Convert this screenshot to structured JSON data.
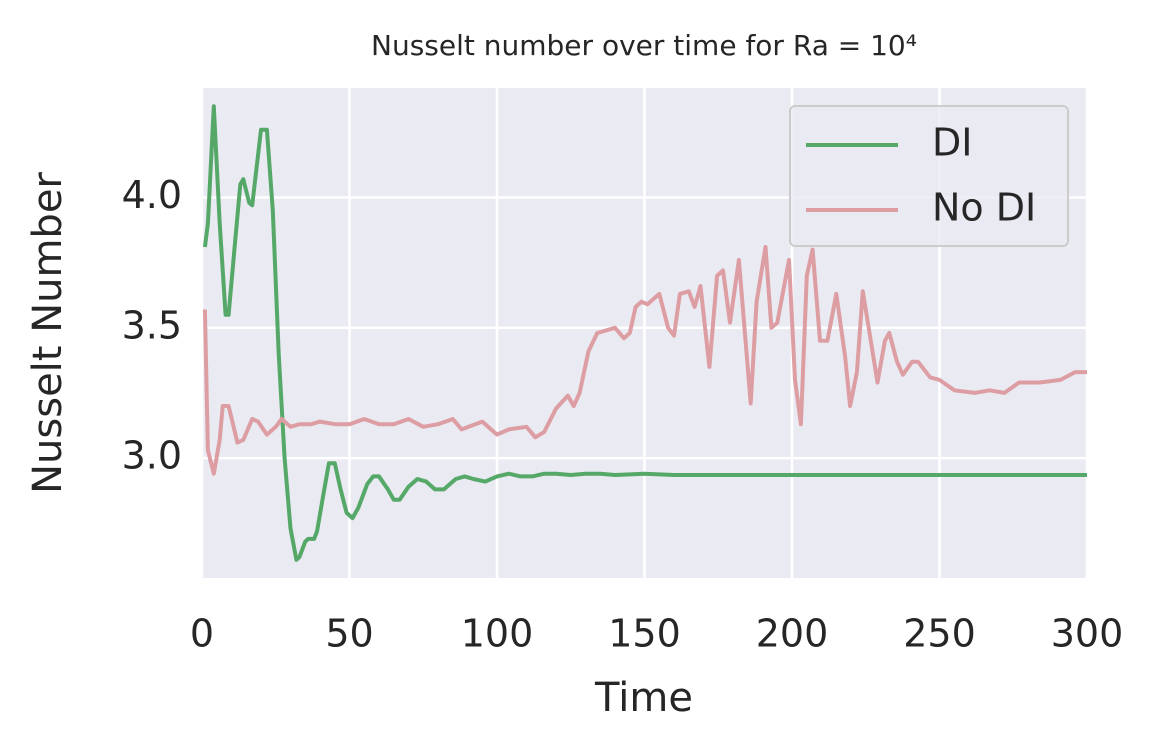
{
  "chart_data": {
    "type": "line",
    "title": "Nusselt number over time for Ra = 10⁴",
    "x_label": "Time",
    "y_label": "Nusselt Number",
    "xlim": [
      0,
      300
    ],
    "xticks": [
      0,
      50,
      100,
      150,
      200,
      250,
      300
    ],
    "ylim": [
      2.54,
      4.42
    ],
    "yticks": [
      {
        "value": 3,
        "label": "3.0"
      },
      3.5,
      {
        "value": 4,
        "label": "4.0"
      }
    ],
    "grid": true,
    "legend": "upper right",
    "series": [
      {
        "name": "DI",
        "color": "#55a868",
        "x": [
          1,
          2,
          4,
          6,
          8,
          9,
          11,
          13,
          14,
          16,
          17,
          20,
          22,
          24,
          26,
          28,
          30,
          32,
          33,
          35,
          36,
          38,
          39,
          41,
          43,
          45,
          47,
          49,
          51,
          53,
          56,
          58,
          60,
          63,
          65,
          67,
          70,
          73,
          76,
          79,
          82,
          86,
          89,
          92,
          96,
          100,
          104,
          108,
          112,
          116,
          120,
          125,
          130,
          135,
          140,
          150,
          160,
          170,
          200,
          250,
          300
        ],
        "values": [
          3.81,
          3.9,
          4.35,
          3.9,
          3.55,
          3.55,
          3.8,
          4.05,
          4.07,
          3.98,
          3.97,
          4.26,
          4.26,
          3.95,
          3.4,
          3.0,
          2.73,
          2.61,
          2.62,
          2.68,
          2.69,
          2.69,
          2.72,
          2.85,
          2.98,
          2.98,
          2.88,
          2.79,
          2.77,
          2.81,
          2.9,
          2.93,
          2.93,
          2.88,
          2.84,
          2.84,
          2.89,
          2.92,
          2.91,
          2.88,
          2.88,
          2.92,
          2.93,
          2.92,
          2.91,
          2.93,
          2.94,
          2.93,
          2.93,
          2.94,
          2.94,
          2.935,
          2.94,
          2.94,
          2.935,
          2.94,
          2.935,
          2.935,
          2.935,
          2.935,
          2.935
        ]
      },
      {
        "name": "No DI",
        "color": "#dd9ea3",
        "x": [
          1,
          2,
          4,
          6,
          7,
          9,
          12,
          14,
          17,
          19,
          22,
          25,
          27,
          30,
          33,
          37,
          40,
          45,
          50,
          55,
          60,
          65,
          70,
          75,
          80,
          85,
          88,
          95,
          100,
          104,
          110,
          113,
          116,
          120,
          124,
          126,
          128,
          131,
          134,
          137,
          140,
          143,
          145,
          147,
          149,
          151,
          155,
          158,
          160,
          162,
          165,
          167,
          169,
          172,
          174.6,
          176.6,
          179,
          182,
          186,
          188,
          191,
          193,
          195,
          199,
          201,
          203,
          205,
          207,
          209.5,
          212,
          215,
          218,
          219.7,
          222,
          224,
          226,
          229,
          231.5,
          233,
          235.6,
          237.6,
          240.7,
          242.7,
          246.8,
          250,
          255,
          262,
          267,
          272,
          277,
          284,
          291,
          296,
          300
        ],
        "values": [
          3.57,
          3.03,
          2.94,
          3.07,
          3.2,
          3.2,
          3.06,
          3.07,
          3.15,
          3.14,
          3.09,
          3.12,
          3.15,
          3.12,
          3.13,
          3.13,
          3.14,
          3.13,
          3.13,
          3.15,
          3.13,
          3.13,
          3.15,
          3.12,
          3.13,
          3.15,
          3.11,
          3.14,
          3.09,
          3.11,
          3.12,
          3.08,
          3.1,
          3.19,
          3.24,
          3.2,
          3.25,
          3.41,
          3.48,
          3.49,
          3.5,
          3.46,
          3.48,
          3.58,
          3.6,
          3.59,
          3.63,
          3.5,
          3.47,
          3.63,
          3.64,
          3.58,
          3.66,
          3.35,
          3.7,
          3.72,
          3.52,
          3.76,
          3.21,
          3.6,
          3.81,
          3.5,
          3.52,
          3.76,
          3.3,
          3.13,
          3.7,
          3.8,
          3.45,
          3.45,
          3.63,
          3.39,
          3.2,
          3.33,
          3.64,
          3.5,
          3.29,
          3.45,
          3.48,
          3.37,
          3.32,
          3.37,
          3.37,
          3.31,
          3.3,
          3.26,
          3.25,
          3.26,
          3.25,
          3.29,
          3.29,
          3.3,
          3.33,
          3.33
        ]
      }
    ]
  }
}
